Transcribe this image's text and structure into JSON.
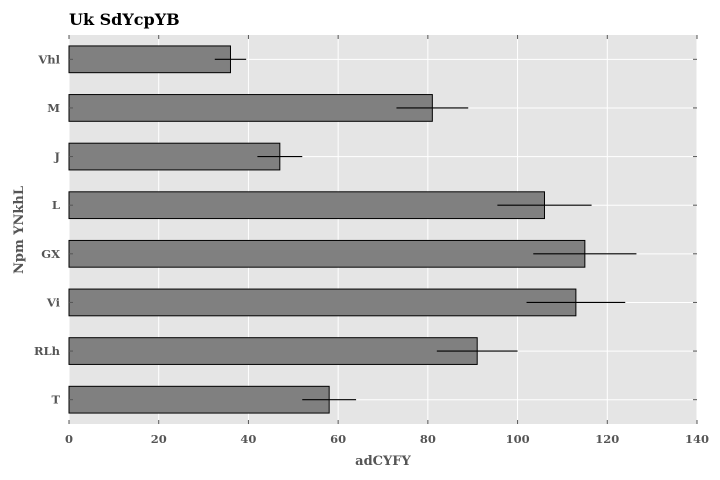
{
  "chart_data": {
    "type": "bar",
    "orientation": "horizontal",
    "title": "Uk SdYcpYB",
    "xlabel": "adCYFY",
    "ylabel": "Npm YNkhL",
    "categories": [
      "T",
      "RLh",
      "Vi",
      "GX",
      "L",
      "J",
      "M",
      "Vhl"
    ],
    "values": [
      58,
      91,
      113,
      115,
      106,
      47,
      81,
      36
    ],
    "errors": [
      6,
      9,
      11,
      11.5,
      10.5,
      5,
      8,
      3.5
    ],
    "xlim": [
      0,
      140
    ],
    "xticks": [
      0,
      20,
      40,
      60,
      80,
      100,
      120,
      140
    ],
    "grid": true,
    "colors": {
      "bar_fill": "#808080",
      "bar_edge": "#000000",
      "plot_background": "#e5e5e5",
      "grid": "#ffffff",
      "error_bar": "#000000"
    }
  }
}
